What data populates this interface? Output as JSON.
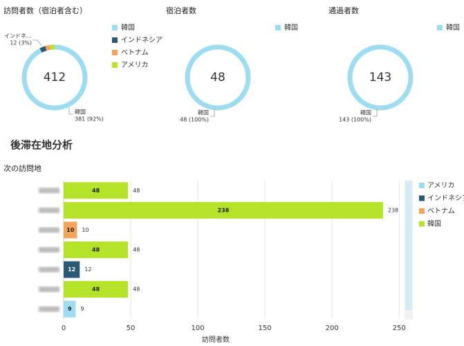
{
  "section_title": "後滞在地分析",
  "chart_data": [
    {
      "type": "pie",
      "title": "訪問者数（宿泊者含む）",
      "total": 412,
      "categories": [
        "韓国",
        "インドネシア",
        "ベトナム",
        "アメリカ"
      ],
      "values": [
        381,
        12,
        10,
        9
      ],
      "colors": [
        "#9edcef",
        "#2b5a74",
        "#f5a55a",
        "#b5e32a"
      ],
      "value_labels": [
        "381 (92%)",
        "12 (3%)",
        null,
        null
      ],
      "callout_names": [
        "韓国",
        "インドネ…",
        null,
        null
      ]
    },
    {
      "type": "pie",
      "title": "宿泊者数",
      "total": 48,
      "categories": [
        "韓国"
      ],
      "values": [
        48
      ],
      "colors": [
        "#9edcef"
      ],
      "value_labels": [
        "48 (100%)"
      ],
      "callout_names": [
        "韓国"
      ]
    },
    {
      "type": "pie",
      "title": "通過者数",
      "total": 143,
      "categories": [
        "韓国"
      ],
      "values": [
        143
      ],
      "colors": [
        "#9edcef"
      ],
      "value_labels": [
        "143 (100%)"
      ],
      "callout_names": [
        "韓国"
      ]
    },
    {
      "type": "hbar",
      "title": "次の訪問地",
      "x_label": "訪問者数",
      "categories": [
        null,
        null,
        null,
        null,
        null,
        null,
        null
      ],
      "series": [
        {
          "name": "アメリカ",
          "color": "#9edcef",
          "values": [
            null,
            null,
            null,
            null,
            null,
            null,
            9
          ]
        },
        {
          "name": "インドネシア",
          "color": "#2b5a74",
          "values": [
            null,
            null,
            null,
            null,
            12,
            null,
            null
          ]
        },
        {
          "name": "ベトナム",
          "color": "#f5a55a",
          "values": [
            null,
            null,
            10,
            null,
            null,
            null,
            null
          ]
        },
        {
          "name": "韓国",
          "color": "#b5e32a",
          "values": [
            48,
            238,
            null,
            48,
            null,
            48,
            null
          ]
        }
      ],
      "xlim": [
        0,
        253
      ],
      "xticks": [
        0,
        50,
        100,
        150,
        200,
        250
      ],
      "grid": true
    }
  ]
}
